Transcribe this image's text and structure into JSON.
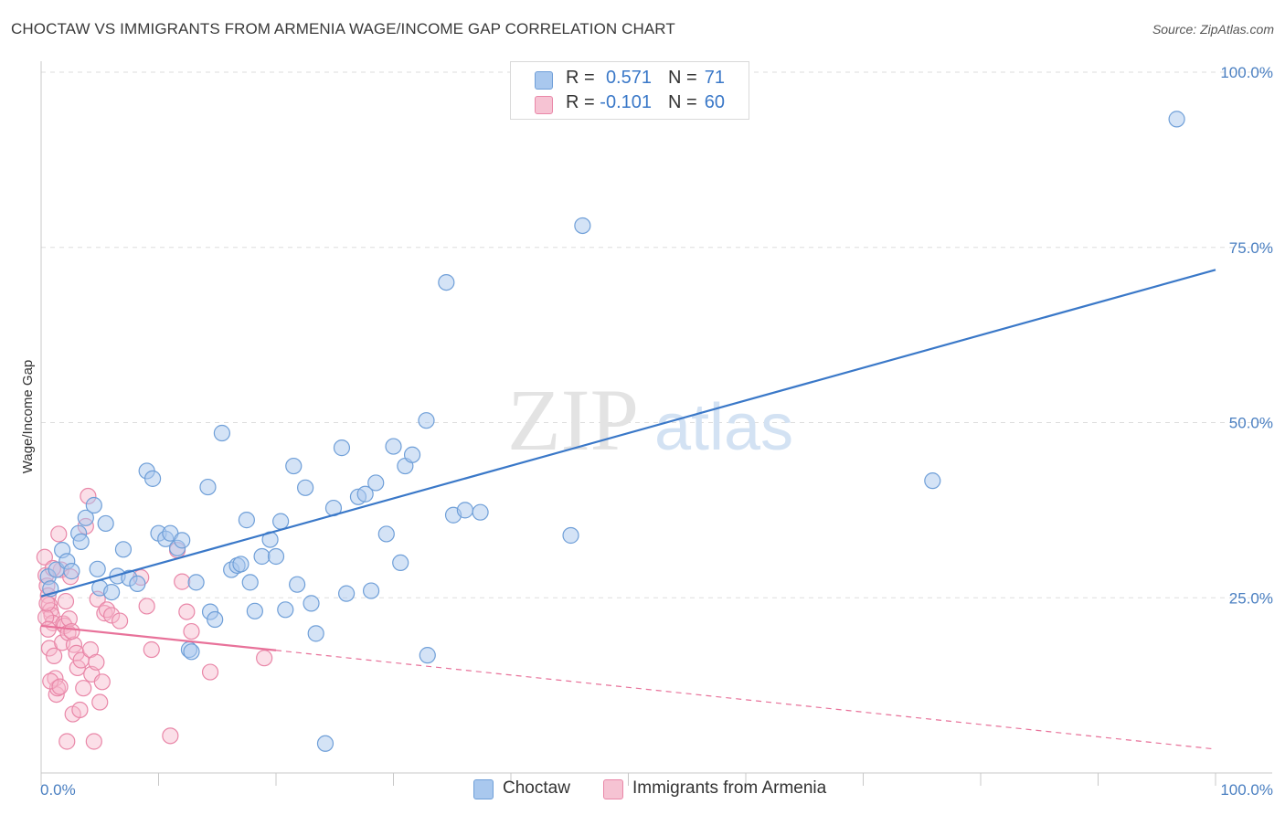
{
  "title": "CHOCTAW VS IMMIGRANTS FROM ARMENIA WAGE/INCOME GAP CORRELATION CHART",
  "source": "Source: ZipAtlas.com",
  "watermark": {
    "zip": "ZIP",
    "atlas": "atlas"
  },
  "legend": {
    "series1": {
      "r_label": "R =",
      "r_value": "0.571",
      "n_label": "N =",
      "n_value": "71"
    },
    "series2": {
      "r_label": "R =",
      "r_value": "-0.101",
      "n_label": "N =",
      "n_value": "60"
    }
  },
  "bottom_legend": {
    "series1": "Choctaw",
    "series2": "Immigrants from Armenia"
  },
  "colors": {
    "blue_fill": "#a9c8ee",
    "blue_stroke": "#6f9fd8",
    "blue_line": "#3a78c8",
    "pink_fill": "#f6b9cc",
    "pink_stroke": "#e987a8",
    "pink_line": "#e8729a",
    "grid": "#dddddd",
    "tick_text": "#4a7fc1"
  },
  "chart_data": {
    "type": "scatter",
    "title": "CHOCTAW VS IMMIGRANTS FROM ARMENIA WAGE/INCOME GAP CORRELATION CHART",
    "xlabel": "",
    "ylabel": "Wage/Income Gap",
    "xlim": [
      0,
      100
    ],
    "ylim": [
      0,
      100
    ],
    "x_tick_labels": [
      "0.0%",
      "100.0%"
    ],
    "y_ticks": [
      25,
      50,
      75,
      100
    ],
    "y_tick_labels": [
      "25.0%",
      "50.0%",
      "75.0%",
      "100.0%"
    ],
    "grid": true,
    "series": [
      {
        "name": "Choctaw",
        "color": "blue",
        "trend": {
          "x": [
            0,
            100
          ],
          "y": [
            25.2,
            71.8
          ]
        },
        "points": [
          [
            0.6,
            28
          ],
          [
            0.8,
            26.3
          ],
          [
            1.3,
            29
          ],
          [
            1.8,
            31.8
          ],
          [
            2.2,
            30.2
          ],
          [
            2.6,
            28.8
          ],
          [
            3.2,
            34.2
          ],
          [
            3.4,
            33
          ],
          [
            3.8,
            36.4
          ],
          [
            4.5,
            38.2
          ],
          [
            5.0,
            26.4
          ],
          [
            5.5,
            35.6
          ],
          [
            6.0,
            25.8
          ],
          [
            6.5,
            28.1
          ],
          [
            7.0,
            31.9
          ],
          [
            7.5,
            27.8
          ],
          [
            8.2,
            27
          ],
          [
            9.0,
            43.1
          ],
          [
            9.5,
            42
          ],
          [
            10.0,
            34.2
          ],
          [
            10.6,
            33.4
          ],
          [
            11.0,
            34.2
          ],
          [
            11.6,
            32.1
          ],
          [
            12.0,
            33.2
          ],
          [
            12.6,
            17.6
          ],
          [
            12.8,
            17.3
          ],
          [
            13.2,
            27.2
          ],
          [
            14.2,
            40.8
          ],
          [
            14.4,
            23
          ],
          [
            14.8,
            21.9
          ],
          [
            15.4,
            48.5
          ],
          [
            16.2,
            29
          ],
          [
            16.7,
            29.6
          ],
          [
            17.0,
            29.8
          ],
          [
            17.5,
            36.1
          ],
          [
            17.8,
            27.2
          ],
          [
            18.2,
            23.1
          ],
          [
            18.8,
            30.9
          ],
          [
            19.5,
            33.3
          ],
          [
            20.0,
            30.9
          ],
          [
            20.4,
            35.9
          ],
          [
            20.8,
            23.3
          ],
          [
            21.5,
            43.8
          ],
          [
            21.8,
            26.9
          ],
          [
            22.5,
            40.7
          ],
          [
            23.0,
            24.2
          ],
          [
            23.4,
            19.9
          ],
          [
            24.2,
            4.2
          ],
          [
            24.9,
            37.8
          ],
          [
            25.6,
            46.4
          ],
          [
            26.0,
            25.6
          ],
          [
            27.0,
            39.4
          ],
          [
            27.6,
            39.8
          ],
          [
            28.1,
            26
          ],
          [
            28.5,
            41.4
          ],
          [
            29.4,
            34.1
          ],
          [
            30.0,
            46.6
          ],
          [
            30.6,
            30
          ],
          [
            31.0,
            43.8
          ],
          [
            31.6,
            45.4
          ],
          [
            32.8,
            50.3
          ],
          [
            32.9,
            16.8
          ],
          [
            35.1,
            36.8
          ],
          [
            36.1,
            37.5
          ],
          [
            37.4,
            37.2
          ],
          [
            34.5,
            70
          ],
          [
            45.1,
            33.9
          ],
          [
            46.1,
            78.1
          ],
          [
            75.9,
            41.7
          ],
          [
            96.7,
            93.3
          ],
          [
            4.8,
            29.1
          ]
        ]
      },
      {
        "name": "Immigrants from Armenia",
        "color": "pink",
        "trend": {
          "x": [
            0,
            20
          ],
          "y": [
            21,
            17.5
          ],
          "dashed_to": [
            100,
            3.4
          ]
        },
        "points": [
          [
            0.3,
            30.8
          ],
          [
            0.4,
            28.2
          ],
          [
            0.5,
            26.7
          ],
          [
            0.6,
            25.3
          ],
          [
            0.7,
            24
          ],
          [
            0.8,
            23.2
          ],
          [
            0.9,
            22.5
          ],
          [
            1.0,
            21.4
          ],
          [
            0.4,
            22.2
          ],
          [
            0.6,
            20.5
          ],
          [
            0.7,
            17.8
          ],
          [
            1.1,
            16.7
          ],
          [
            1.2,
            13.5
          ],
          [
            1.3,
            11.2
          ],
          [
            1.4,
            12.1
          ],
          [
            1.5,
            34.1
          ],
          [
            1.7,
            29
          ],
          [
            1.8,
            18.6
          ],
          [
            1.9,
            21.3
          ],
          [
            2.0,
            21
          ],
          [
            2.1,
            24.5
          ],
          [
            2.3,
            20
          ],
          [
            2.4,
            22
          ],
          [
            2.5,
            28
          ],
          [
            2.7,
            8.4
          ],
          [
            2.8,
            18.3
          ],
          [
            3.0,
            17.1
          ],
          [
            3.1,
            15
          ],
          [
            3.4,
            16.1
          ],
          [
            3.6,
            12.1
          ],
          [
            3.8,
            35.2
          ],
          [
            4.0,
            39.5
          ],
          [
            4.2,
            17.6
          ],
          [
            4.3,
            14.1
          ],
          [
            4.5,
            4.5
          ],
          [
            4.7,
            15.8
          ],
          [
            4.8,
            24.8
          ],
          [
            5.0,
            10.1
          ],
          [
            5.2,
            13
          ],
          [
            5.4,
            22.8
          ],
          [
            5.6,
            23.3
          ],
          [
            6.0,
            22.5
          ],
          [
            6.7,
            21.7
          ],
          [
            8.5,
            27.9
          ],
          [
            9.0,
            23.8
          ],
          [
            9.4,
            17.6
          ],
          [
            11.0,
            5.3
          ],
          [
            11.6,
            31.8
          ],
          [
            12.0,
            27.3
          ],
          [
            12.4,
            23
          ],
          [
            12.8,
            20.2
          ],
          [
            14.4,
            14.4
          ],
          [
            19.0,
            16.4
          ],
          [
            0.8,
            13.1
          ],
          [
            1.6,
            12.3
          ],
          [
            2.2,
            4.5
          ],
          [
            3.3,
            9
          ],
          [
            1.0,
            29.2
          ],
          [
            2.6,
            20.2
          ],
          [
            0.5,
            24.2
          ]
        ]
      }
    ]
  },
  "watermark_note": ""
}
